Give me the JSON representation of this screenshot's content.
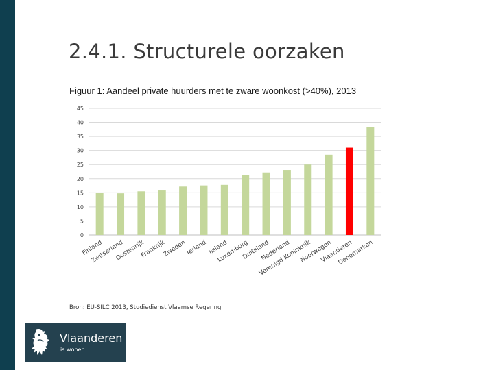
{
  "slide": {
    "title": "2.4.1. Structurele oorzaken",
    "figure_label": "Figuur 1:",
    "figure_title": "Aandeel private huurders met te zware woonkost (>40%), 2013",
    "source": "Bron: EU-SILC 2013, Studiedienst Vlaamse Regering"
  },
  "logo": {
    "name": "Vlaanderen",
    "tagline": "is wonen",
    "icon": "flemish-lion-icon"
  },
  "chart_data": {
    "type": "bar",
    "title": "",
    "xlabel": "",
    "ylabel": "",
    "ylim": [
      0,
      45
    ],
    "yticks": [
      0,
      5,
      10,
      15,
      20,
      25,
      30,
      35,
      40,
      45
    ],
    "grid": true,
    "legend": "none",
    "categories": [
      "Finland",
      "Zwitserland",
      "Oostenrijk",
      "Frankrijk",
      "Zweden",
      "Ierland",
      "Ijsland",
      "Luxemburg",
      "Duitsland",
      "Nederland",
      "Verenigd Koninkrijk",
      "Noorwegen",
      "Vlaanderen",
      "Denemarken"
    ],
    "values": [
      15,
      14.8,
      15.5,
      15.8,
      17.2,
      17.6,
      17.8,
      21.3,
      22.2,
      23.1,
      25,
      28.5,
      31,
      38.3
    ],
    "colors": {
      "default": "#c4d79b",
      "highlight": "#ff0000",
      "highlight_category": "Vlaanderen",
      "grid": "#d9d9d9"
    }
  }
}
